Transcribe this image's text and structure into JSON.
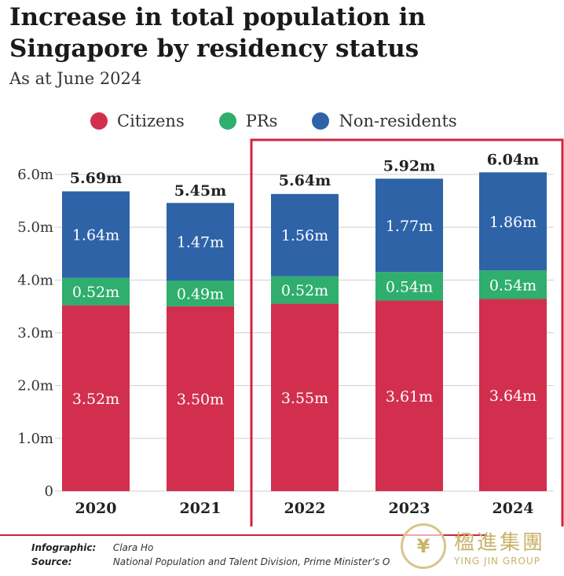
{
  "header": {
    "title": "Increase in total population in Singapore by residency status",
    "subtitle": "As at June 2024"
  },
  "legend": [
    {
      "label": "Citizens",
      "color": "#d22f4f"
    },
    {
      "label": "PRs",
      "color": "#2fae6d"
    },
    {
      "label": "Non-residents",
      "color": "#2e63a8"
    }
  ],
  "chart_data": {
    "type": "bar",
    "stacked": true,
    "categories": [
      "2020",
      "2021",
      "2022",
      "2023",
      "2024"
    ],
    "series": [
      {
        "name": "Citizens",
        "values": [
          3.52,
          3.5,
          3.55,
          3.61,
          3.64
        ],
        "labels": [
          "3.52m",
          "3.50m",
          "3.55m",
          "3.61m",
          "3.64m"
        ],
        "color": "#d22f4f"
      },
      {
        "name": "PRs",
        "values": [
          0.52,
          0.49,
          0.52,
          0.54,
          0.54
        ],
        "labels": [
          "0.52m",
          "0.49m",
          "0.52m",
          "0.54m",
          "0.54m"
        ],
        "color": "#2fae6d"
      },
      {
        "name": "Non-residents",
        "values": [
          1.64,
          1.47,
          1.56,
          1.77,
          1.86
        ],
        "labels": [
          "1.64m",
          "1.47m",
          "1.56m",
          "1.77m",
          "1.86m"
        ],
        "color": "#2e63a8"
      }
    ],
    "totals": [
      5.69,
      5.45,
      5.64,
      5.92,
      6.04
    ],
    "total_labels": [
      "5.69m",
      "5.45m",
      "5.64m",
      "5.92m",
      "6.04m"
    ],
    "y_ticks": [
      0,
      1.0,
      2.0,
      3.0,
      4.0,
      5.0,
      6.0
    ],
    "y_tick_labels": [
      "0",
      "1.0m",
      "2.0m",
      "3.0m",
      "4.0m",
      "5.0m",
      "6.0m"
    ],
    "ylim": [
      0,
      6.0
    ],
    "grid": true,
    "highlight": {
      "categories": [
        "2022",
        "2023",
        "2024"
      ],
      "color": "#d0243f"
    }
  },
  "footer": {
    "infographic_label": "Infographic:",
    "infographic_value": "Clara Ho",
    "source_label": "Source:",
    "source_value": "National Population and Talent Division, Prime Minister’s O"
  },
  "watermark": {
    "chinese": "楹進集團",
    "english": "YING JIN GROUP"
  }
}
